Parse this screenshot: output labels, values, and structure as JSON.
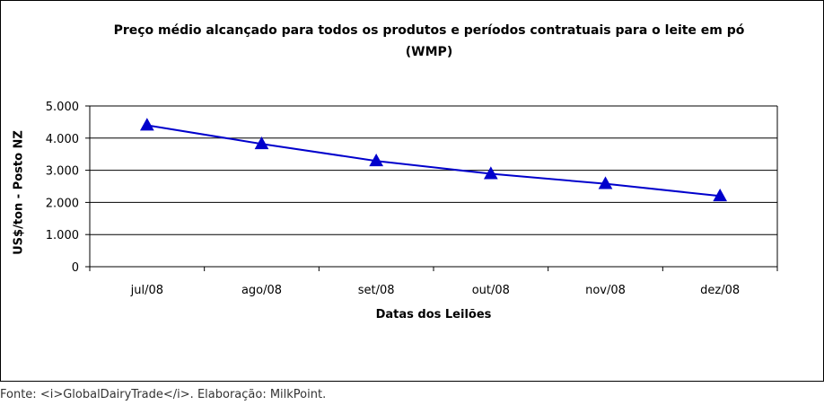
{
  "chart_data": {
    "type": "line",
    "title": "Preço médio alcançado para todos os produtos e períodos contratuais para o leite em pó (WMP)",
    "xlabel": "Datas dos Leilões",
    "ylabel": "US$/ton - Posto NZ",
    "categories": [
      "jul/08",
      "ago/08",
      "set/08",
      "out/08",
      "nov/08",
      "dez/08"
    ],
    "series": [
      {
        "values": [
          4400,
          3820,
          3290,
          2890,
          2580,
          2200
        ],
        "color": "#0000cc",
        "marker": "triangle"
      }
    ],
    "ylim": [
      0,
      5000
    ],
    "yticks": [
      0,
      1000,
      2000,
      3000,
      4000,
      5000
    ],
    "ytick_labels": [
      "0",
      "1.000",
      "2.000",
      "3.000",
      "4.000",
      "5.000"
    ],
    "grid": true
  },
  "source_note": "Fonte: <i>GlobalDairyTrade</i>. Elaboração: MilkPoint."
}
